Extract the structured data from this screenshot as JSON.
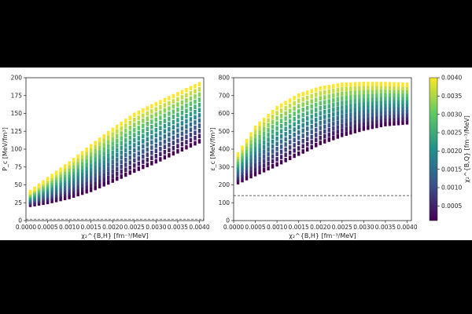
{
  "chart_data": [
    {
      "type": "scatter",
      "ylabel": "P_c [MeV/fm³]",
      "xlabel": "χ₂^{B,H} [fm⁻³/MeV]",
      "xlim": [
        0.0,
        0.0041
      ],
      "ylim": [
        0,
        200
      ],
      "xticks": [
        "0.0000",
        "0.0005",
        "0.0010",
        "0.0015",
        "0.0020",
        "0.0025",
        "0.0030",
        "0.0035",
        "0.0040"
      ],
      "yticks": [
        "0",
        "25",
        "50",
        "75",
        "100",
        "125",
        "150",
        "175",
        "200"
      ],
      "x": [
        0.0001,
        0.0005,
        0.001,
        0.0015,
        0.002,
        0.0025,
        0.003,
        0.0035,
        0.004
      ],
      "y_min": [
        22,
        26,
        33,
        43,
        56,
        70,
        83,
        97,
        111
      ],
      "y_max": [
        40,
        58,
        80,
        104,
        127,
        148,
        163,
        177,
        191
      ],
      "color_min": 0.0001,
      "color_max": 0.004,
      "hline": 2,
      "grid": false
    },
    {
      "type": "scatter",
      "ylabel": "ε_c [MeV/fm³]",
      "xlabel": "χ₂^{B,H} [fm⁻³/MeV]",
      "xlim": [
        0.0,
        0.0041
      ],
      "ylim": [
        0,
        800
      ],
      "xticks": [
        "0.0000",
        "0.0005",
        "0.0010",
        "0.0015",
        "0.0020",
        "0.0025",
        "0.0030",
        "0.0035",
        "0.0040"
      ],
      "yticks": [
        "0",
        "100",
        "200",
        "300",
        "400",
        "500",
        "600",
        "700",
        "800"
      ],
      "x": [
        0.0001,
        0.0005,
        0.001,
        0.0015,
        0.002,
        0.0025,
        0.003,
        0.0035,
        0.004
      ],
      "y_min": [
        215,
        260,
        315,
        375,
        435,
        480,
        515,
        540,
        550
      ],
      "y_max": [
        370,
        520,
        630,
        700,
        740,
        760,
        765,
        765,
        760
      ],
      "color_min": 0.0001,
      "color_max": 0.004,
      "hline": 140,
      "grid": false
    }
  ],
  "colorbar": {
    "label": "χ₂^{B,Q} [fm⁻³/MeV]",
    "ticks": [
      "0.0005",
      "0.0010",
      "0.0015",
      "0.0020",
      "0.0025",
      "0.0030",
      "0.0035",
      "0.0040"
    ],
    "min": 0.0001,
    "max": 0.004,
    "colormap": "viridis"
  }
}
